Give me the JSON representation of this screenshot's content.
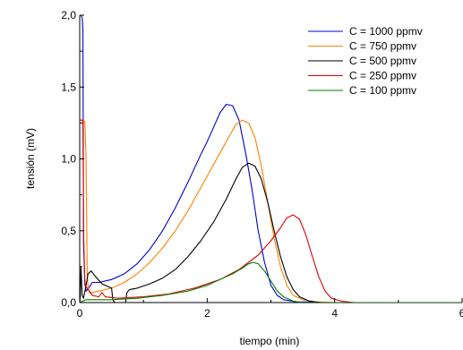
{
  "chart_data": {
    "type": "line",
    "xlabel": "tiempo (min)",
    "ylabel": "tensión (mV)",
    "xlim": [
      0,
      6
    ],
    "ylim": [
      0,
      2
    ],
    "grid": false,
    "legend_placement": "top-right",
    "x_ticks": [
      {
        "value": 0,
        "label": "0"
      },
      {
        "value": 2,
        "label": "2"
      },
      {
        "value": 4,
        "label": "4"
      },
      {
        "value": 6,
        "label": "6"
      }
    ],
    "y_ticks": [
      {
        "value": 0,
        "label": "0,0"
      },
      {
        "value": 0.5,
        "label": "0,5"
      },
      {
        "value": 1,
        "label": "1,0"
      },
      {
        "value": 1.5,
        "label": "1,5"
      },
      {
        "value": 2,
        "label": "2,0"
      }
    ],
    "series": [
      {
        "name": "C = 1000 ppmv",
        "color": "#0000cc",
        "points": [
          [
            0.0,
            2.0
          ],
          [
            0.02,
            2.0
          ],
          [
            0.04,
            1.98
          ],
          [
            0.05,
            1.9
          ],
          [
            0.06,
            0.4
          ],
          [
            0.08,
            0.15
          ],
          [
            0.1,
            0.08
          ],
          [
            0.14,
            0.1
          ],
          [
            0.2,
            0.14
          ],
          [
            0.3,
            0.14
          ],
          [
            0.5,
            0.16
          ],
          [
            0.7,
            0.2
          ],
          [
            0.9,
            0.27
          ],
          [
            1.1,
            0.37
          ],
          [
            1.3,
            0.5
          ],
          [
            1.5,
            0.66
          ],
          [
            1.7,
            0.84
          ],
          [
            1.9,
            1.03
          ],
          [
            2.0,
            1.12
          ],
          [
            2.1,
            1.22
          ],
          [
            2.2,
            1.32
          ],
          [
            2.3,
            1.38
          ],
          [
            2.4,
            1.37
          ],
          [
            2.5,
            1.27
          ],
          [
            2.6,
            1.05
          ],
          [
            2.7,
            0.8
          ],
          [
            2.8,
            0.5
          ],
          [
            2.9,
            0.28
          ],
          [
            3.0,
            0.12
          ],
          [
            3.1,
            0.05
          ],
          [
            3.2,
            0.02
          ],
          [
            3.4,
            0.005
          ],
          [
            4.0,
            0.0
          ],
          [
            6.0,
            0.0
          ]
        ]
      },
      {
        "name": "C = 750 ppmv",
        "color": "#ff8000",
        "points": [
          [
            0.0,
            1.27
          ],
          [
            0.05,
            1.27
          ],
          [
            0.08,
            1.26
          ],
          [
            0.1,
            1.0
          ],
          [
            0.12,
            0.15
          ],
          [
            0.15,
            0.07
          ],
          [
            0.2,
            0.07
          ],
          [
            0.3,
            0.08
          ],
          [
            0.5,
            0.1
          ],
          [
            0.7,
            0.14
          ],
          [
            0.9,
            0.2
          ],
          [
            1.1,
            0.28
          ],
          [
            1.3,
            0.38
          ],
          [
            1.5,
            0.5
          ],
          [
            1.7,
            0.64
          ],
          [
            1.9,
            0.8
          ],
          [
            2.1,
            0.96
          ],
          [
            2.3,
            1.12
          ],
          [
            2.45,
            1.24
          ],
          [
            2.55,
            1.27
          ],
          [
            2.65,
            1.25
          ],
          [
            2.75,
            1.15
          ],
          [
            2.85,
            0.95
          ],
          [
            2.95,
            0.7
          ],
          [
            3.05,
            0.45
          ],
          [
            3.15,
            0.25
          ],
          [
            3.25,
            0.12
          ],
          [
            3.35,
            0.05
          ],
          [
            3.5,
            0.02
          ],
          [
            3.7,
            0.005
          ],
          [
            4.0,
            0.0
          ],
          [
            6.0,
            0.0
          ]
        ]
      },
      {
        "name": "C = 500 ppmv",
        "color": "#000000",
        "points": [
          [
            0.0,
            0.0
          ],
          [
            0.01,
            0.05
          ],
          [
            0.02,
            0.25
          ],
          [
            0.04,
            0.05
          ],
          [
            0.06,
            0.03
          ],
          [
            0.1,
            0.12
          ],
          [
            0.13,
            0.2
          ],
          [
            0.18,
            0.22
          ],
          [
            0.25,
            0.18
          ],
          [
            0.35,
            0.13
          ],
          [
            0.45,
            0.11
          ],
          [
            0.5,
            0.1
          ],
          [
            0.52,
            0.02
          ],
          [
            0.55,
            0.0
          ],
          [
            0.72,
            0.0
          ],
          [
            0.74,
            0.07
          ],
          [
            0.78,
            0.09
          ],
          [
            0.9,
            0.1
          ],
          [
            1.1,
            0.13
          ],
          [
            1.3,
            0.17
          ],
          [
            1.5,
            0.23
          ],
          [
            1.7,
            0.32
          ],
          [
            1.9,
            0.43
          ],
          [
            2.1,
            0.56
          ],
          [
            2.3,
            0.72
          ],
          [
            2.45,
            0.86
          ],
          [
            2.55,
            0.94
          ],
          [
            2.65,
            0.97
          ],
          [
            2.75,
            0.95
          ],
          [
            2.85,
            0.86
          ],
          [
            2.95,
            0.7
          ],
          [
            3.05,
            0.5
          ],
          [
            3.15,
            0.32
          ],
          [
            3.25,
            0.18
          ],
          [
            3.35,
            0.09
          ],
          [
            3.45,
            0.04
          ],
          [
            3.6,
            0.01
          ],
          [
            3.8,
            0.0
          ],
          [
            6.0,
            0.0
          ]
        ]
      },
      {
        "name": "C = 250 ppmv",
        "color": "#dd0000",
        "points": [
          [
            0.0,
            1.27
          ],
          [
            0.05,
            1.27
          ],
          [
            0.06,
            0.5
          ],
          [
            0.08,
            0.12
          ],
          [
            0.12,
            0.1
          ],
          [
            0.15,
            0.08
          ],
          [
            0.2,
            0.05
          ],
          [
            0.3,
            0.04
          ],
          [
            0.35,
            0.07
          ],
          [
            0.4,
            0.04
          ],
          [
            0.6,
            0.03
          ],
          [
            1.0,
            0.04
          ],
          [
            1.4,
            0.06
          ],
          [
            1.8,
            0.1
          ],
          [
            2.2,
            0.16
          ],
          [
            2.5,
            0.23
          ],
          [
            2.8,
            0.33
          ],
          [
            3.0,
            0.43
          ],
          [
            3.15,
            0.52
          ],
          [
            3.25,
            0.59
          ],
          [
            3.35,
            0.61
          ],
          [
            3.45,
            0.58
          ],
          [
            3.55,
            0.47
          ],
          [
            3.65,
            0.32
          ],
          [
            3.75,
            0.18
          ],
          [
            3.85,
            0.08
          ],
          [
            3.95,
            0.03
          ],
          [
            4.1,
            0.01
          ],
          [
            4.3,
            0.0
          ],
          [
            6.0,
            0.0
          ]
        ]
      },
      {
        "name": "C = 100 ppmv",
        "color": "#008000",
        "points": [
          [
            0.0,
            0.0
          ],
          [
            0.1,
            0.02
          ],
          [
            0.5,
            0.02
          ],
          [
            0.9,
            0.03
          ],
          [
            1.3,
            0.05
          ],
          [
            1.7,
            0.08
          ],
          [
            2.0,
            0.12
          ],
          [
            2.2,
            0.16
          ],
          [
            2.4,
            0.2
          ],
          [
            2.55,
            0.24
          ],
          [
            2.65,
            0.27
          ],
          [
            2.72,
            0.28
          ],
          [
            2.8,
            0.27
          ],
          [
            2.9,
            0.22
          ],
          [
            3.0,
            0.15
          ],
          [
            3.1,
            0.08
          ],
          [
            3.2,
            0.04
          ],
          [
            3.35,
            0.01
          ],
          [
            3.5,
            0.0
          ],
          [
            6.0,
            0.0
          ]
        ]
      }
    ]
  }
}
